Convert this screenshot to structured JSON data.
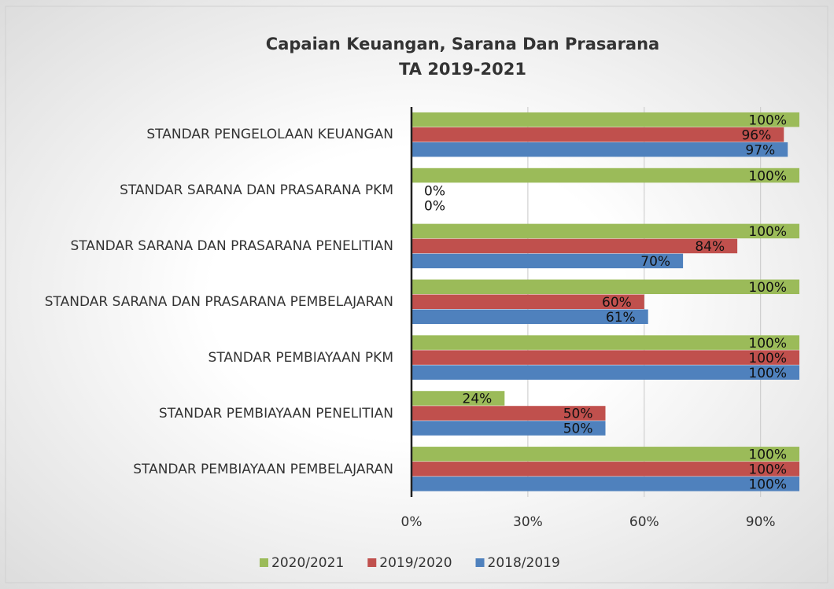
{
  "chart_data": {
    "type": "bar",
    "orientation": "horizontal",
    "title": "Capaian Keuangan, Sarana Dan Prasarana",
    "subtitle": "TA 2019-2021",
    "categories": [
      "STANDAR PENGELOLAAN KEUANGAN",
      "STANDAR SARANA DAN PRASARANA PKM",
      "STANDAR SARANA DAN PRASARANA PENELITIAN",
      "STANDAR SARANA DAN PRASARANA PEMBELAJARAN",
      "STANDAR PEMBIAYAAN PKM",
      "STANDAR PEMBIAYAAN PENELITIAN",
      "STANDAR PEMBIAYAAN PEMBELAJARAN"
    ],
    "series": [
      {
        "name": "2020/2021",
        "color": "#9bbb59",
        "values": [
          100,
          100,
          100,
          100,
          100,
          24,
          100
        ],
        "value_labels": [
          "100%",
          "100%",
          "100%",
          "100%",
          "100%",
          "24%",
          "100%"
        ]
      },
      {
        "name": "2019/2020",
        "color": "#c0504d",
        "values": [
          96,
          0,
          84,
          60,
          100,
          50,
          100
        ],
        "value_labels": [
          "96%",
          "0%",
          "84%",
          "60%",
          "100%",
          "50%",
          "100%"
        ]
      },
      {
        "name": "2018/2019",
        "color": "#4f81bd",
        "values": [
          97,
          0,
          70,
          61,
          100,
          50,
          100
        ],
        "value_labels": [
          "97%",
          "0%",
          "70%",
          "61%",
          "100%",
          "50%",
          "100%"
        ]
      }
    ],
    "xlim": [
      0,
      100
    ],
    "xticks": [
      {
        "value": 0,
        "label": "0%"
      },
      {
        "value": 30,
        "label": "30%"
      },
      {
        "value": 60,
        "label": "60%"
      },
      {
        "value": 90,
        "label": "90%"
      }
    ],
    "grid": true,
    "legend": "bottom"
  }
}
